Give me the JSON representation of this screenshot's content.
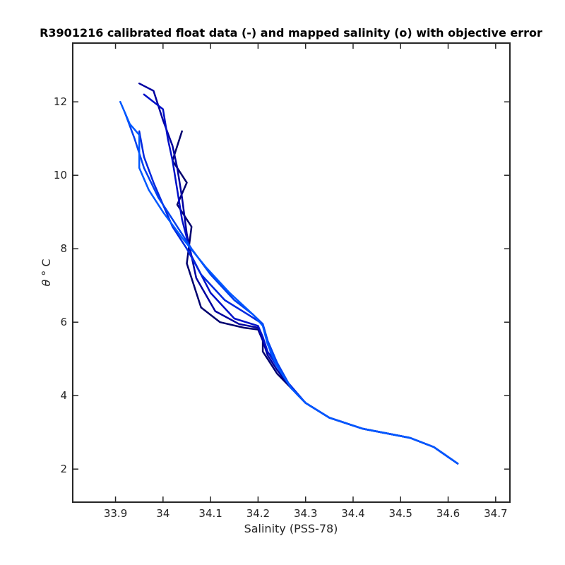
{
  "chart_data": {
    "type": "line",
    "title": "R3901216 calibrated float data (-) and mapped salinity (o) with objective error",
    "xlabel": "Salinity (PSS-78)",
    "ylabel_symbol": "θ",
    "ylabel_unit": "° C",
    "xlim": [
      33.81,
      34.73
    ],
    "ylim": [
      1.1,
      13.6
    ],
    "x_ticks": [
      33.9,
      34.0,
      34.1,
      34.2,
      34.3,
      34.4,
      34.5,
      34.6,
      34.7
    ],
    "x_tick_labels": [
      "33.9",
      "34",
      "34.1",
      "34.2",
      "34.3",
      "34.4",
      "34.5",
      "34.6",
      "34.7"
    ],
    "y_ticks": [
      2,
      4,
      6,
      8,
      10,
      12
    ],
    "y_tick_labels": [
      "2",
      "4",
      "6",
      "8",
      "10",
      "12"
    ],
    "grid": false,
    "series_colors": [
      "#00006e",
      "#0000a0",
      "#0010c8",
      "#0028e0",
      "#0040f0",
      "#0058ff"
    ],
    "series": [
      {
        "color_index": 0,
        "x": [
          34.04,
          34.02,
          34.05,
          34.03,
          34.06,
          34.05,
          34.08,
          34.12,
          34.17,
          34.2,
          34.21,
          34.21,
          34.22,
          34.24,
          34.27,
          34.3,
          34.35,
          34.42,
          34.52,
          34.57,
          34.62
        ],
        "y": [
          11.2,
          10.4,
          9.8,
          9.2,
          8.6,
          7.6,
          6.4,
          6.0,
          5.85,
          5.8,
          5.5,
          5.2,
          5.0,
          4.6,
          4.2,
          3.8,
          3.4,
          3.1,
          2.85,
          2.6,
          2.15
        ]
      },
      {
        "color_index": 1,
        "x": [
          33.95,
          33.98,
          34.0,
          34.02,
          34.03,
          34.04,
          34.05,
          34.07,
          34.11,
          34.16,
          34.2,
          34.21,
          34.22,
          34.24,
          34.27,
          34.3,
          34.35,
          34.42,
          34.52,
          34.57,
          34.62
        ],
        "y": [
          12.5,
          12.3,
          11.5,
          10.8,
          10.2,
          9.4,
          8.4,
          7.2,
          6.3,
          5.95,
          5.85,
          5.5,
          5.1,
          4.7,
          4.2,
          3.8,
          3.4,
          3.1,
          2.85,
          2.6,
          2.15
        ]
      },
      {
        "color_index": 2,
        "x": [
          33.96,
          34.0,
          34.01,
          34.02,
          34.03,
          34.04,
          34.06,
          34.1,
          34.15,
          34.2,
          34.21,
          34.22,
          34.24,
          34.27,
          34.3,
          34.35,
          34.42,
          34.52,
          34.57,
          34.62
        ],
        "y": [
          12.2,
          11.8,
          11.0,
          10.4,
          9.6,
          8.8,
          7.8,
          6.8,
          6.1,
          5.9,
          5.6,
          5.2,
          4.8,
          4.2,
          3.8,
          3.4,
          3.1,
          2.85,
          2.6,
          2.15
        ]
      },
      {
        "color_index": 3,
        "x": [
          33.95,
          33.96,
          33.98,
          34.0,
          34.02,
          34.05,
          34.08,
          34.13,
          34.18,
          34.21,
          34.22,
          34.23,
          34.26,
          34.3,
          34.35,
          34.42,
          34.52,
          34.57,
          34.62
        ],
        "y": [
          11.2,
          10.5,
          9.8,
          9.2,
          8.6,
          8.0,
          7.3,
          6.6,
          6.2,
          5.95,
          5.5,
          5.0,
          4.4,
          3.8,
          3.4,
          3.1,
          2.85,
          2.6,
          2.15
        ]
      },
      {
        "color_index": 4,
        "x": [
          33.92,
          33.94,
          33.96,
          33.99,
          34.02,
          34.06,
          34.1,
          34.15,
          34.19,
          34.21,
          34.22,
          34.24,
          34.27,
          34.3,
          34.35,
          34.42,
          34.52,
          34.57,
          34.62
        ],
        "y": [
          11.7,
          11.0,
          10.2,
          9.4,
          8.8,
          8.0,
          7.3,
          6.6,
          6.2,
          5.95,
          5.5,
          4.9,
          4.2,
          3.8,
          3.4,
          3.1,
          2.85,
          2.6,
          2.15
        ]
      },
      {
        "color_index": 5,
        "x": [
          33.91,
          33.93,
          33.95,
          33.95,
          33.97,
          34.0,
          34.04,
          34.09,
          34.14,
          34.19,
          34.21,
          34.22,
          34.24,
          34.27,
          34.3,
          34.35,
          34.42,
          34.52,
          34.57,
          34.62
        ],
        "y": [
          12.0,
          11.4,
          11.1,
          10.2,
          9.6,
          9.0,
          8.3,
          7.5,
          6.8,
          6.2,
          5.9,
          5.4,
          4.8,
          4.2,
          3.8,
          3.4,
          3.1,
          2.85,
          2.6,
          2.15
        ]
      }
    ]
  }
}
